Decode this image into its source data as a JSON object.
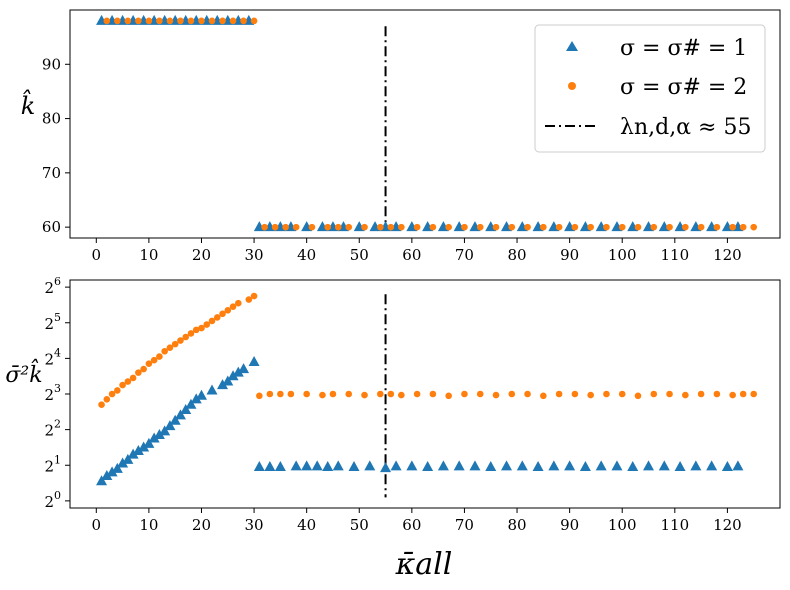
{
  "chart_data": [
    {
      "type": "scatter",
      "panel": "top",
      "xlabel": "",
      "ylabel": "k̂",
      "xlim": [
        -5,
        130
      ],
      "ylim": [
        58,
        100
      ],
      "x_ticks": [
        0,
        10,
        20,
        30,
        40,
        50,
        60,
        70,
        80,
        90,
        100,
        110,
        120
      ],
      "y_ticks": [
        60,
        70,
        80,
        90
      ],
      "y_tick_labels": [
        "60",
        "70",
        "80",
        "90"
      ],
      "vline": {
        "x": 55,
        "y_range": [
          60,
          97
        ],
        "label": "λn,d,α ≈ 55"
      },
      "legend_position": "top-right",
      "series": [
        {
          "name": "σ = σ# = 1",
          "marker": "triangle",
          "color": "#1f77b4",
          "points": [
            [
              1,
              98
            ],
            [
              3,
              98
            ],
            [
              5,
              98
            ],
            [
              7,
              98
            ],
            [
              9,
              98
            ],
            [
              11,
              98
            ],
            [
              13,
              98
            ],
            [
              15,
              98
            ],
            [
              17,
              98
            ],
            [
              19,
              98
            ],
            [
              21,
              98
            ],
            [
              23,
              98
            ],
            [
              25,
              98
            ],
            [
              27,
              98
            ],
            [
              29,
              98
            ],
            [
              31,
              60
            ],
            [
              33,
              60
            ],
            [
              35,
              60
            ],
            [
              37,
              60
            ],
            [
              40,
              60
            ],
            [
              43,
              60
            ],
            [
              45,
              60
            ],
            [
              47,
              60
            ],
            [
              50,
              60
            ],
            [
              53,
              60
            ],
            [
              55,
              60
            ],
            [
              57,
              60
            ],
            [
              60,
              60
            ],
            [
              63,
              60
            ],
            [
              66,
              60
            ],
            [
              69,
              60
            ],
            [
              72,
              60
            ],
            [
              75,
              60
            ],
            [
              78,
              60
            ],
            [
              81,
              60
            ],
            [
              84,
              60
            ],
            [
              87,
              60
            ],
            [
              90,
              60
            ],
            [
              93,
              60
            ],
            [
              96,
              60
            ],
            [
              99,
              60
            ],
            [
              102,
              60
            ],
            [
              105,
              60
            ],
            [
              108,
              60
            ],
            [
              111,
              60
            ],
            [
              114,
              60
            ],
            [
              117,
              60
            ],
            [
              120,
              60
            ],
            [
              122,
              60
            ]
          ]
        },
        {
          "name": "σ = σ# = 2",
          "marker": "circle",
          "color": "#ff7f0e",
          "points": [
            [
              2,
              98
            ],
            [
              4,
              98
            ],
            [
              6,
              98
            ],
            [
              8,
              98
            ],
            [
              10,
              98
            ],
            [
              12,
              98
            ],
            [
              14,
              98
            ],
            [
              16,
              98
            ],
            [
              18,
              98
            ],
            [
              20,
              98
            ],
            [
              22,
              98
            ],
            [
              24,
              98
            ],
            [
              26,
              98
            ],
            [
              28,
              98
            ],
            [
              30,
              98
            ],
            [
              32,
              60
            ],
            [
              34,
              60
            ],
            [
              36,
              60
            ],
            [
              38,
              60
            ],
            [
              41,
              60
            ],
            [
              44,
              60
            ],
            [
              46,
              60
            ],
            [
              48,
              60
            ],
            [
              51,
              60
            ],
            [
              54,
              60
            ],
            [
              56,
              60
            ],
            [
              58,
              60
            ],
            [
              61,
              60
            ],
            [
              64,
              60
            ],
            [
              67,
              60
            ],
            [
              70,
              60
            ],
            [
              73,
              60
            ],
            [
              76,
              60
            ],
            [
              79,
              60
            ],
            [
              82,
              60
            ],
            [
              85,
              60
            ],
            [
              88,
              60
            ],
            [
              91,
              60
            ],
            [
              94,
              60
            ],
            [
              97,
              60
            ],
            [
              100,
              60
            ],
            [
              103,
              60
            ],
            [
              106,
              60
            ],
            [
              109,
              60
            ],
            [
              112,
              60
            ],
            [
              115,
              60
            ],
            [
              118,
              60
            ],
            [
              121,
              60
            ],
            [
              123,
              60
            ],
            [
              125,
              60
            ]
          ]
        }
      ]
    },
    {
      "type": "scatter",
      "panel": "bottom",
      "xlabel": "κ̄all",
      "ylabel": "σ̄²k̂",
      "y_scale": "log2",
      "xlim": [
        -5,
        130
      ],
      "ylim_log2": [
        -0.2,
        6.2
      ],
      "x_ticks": [
        0,
        10,
        20,
        30,
        40,
        50,
        60,
        70,
        80,
        90,
        100,
        110,
        120
      ],
      "x_tick_labels": [
        "0",
        "10",
        "20",
        "30",
        "40",
        "50",
        "60",
        "70",
        "80",
        "90",
        "100",
        "110",
        "120"
      ],
      "y_ticks_log2": [
        0,
        1,
        2,
        3,
        4,
        5,
        6
      ],
      "vline": {
        "x": 55,
        "y_range_log2": [
          0.1,
          5.8
        ]
      },
      "series": [
        {
          "name": "σ = σ# = 1",
          "marker": "triangle",
          "color": "#1f77b4",
          "points": [
            [
              1,
              0.55
            ],
            [
              2,
              0.7
            ],
            [
              3,
              0.8
            ],
            [
              4,
              0.9
            ],
            [
              5,
              1.05
            ],
            [
              6,
              1.15
            ],
            [
              7,
              1.3
            ],
            [
              8,
              1.4
            ],
            [
              9,
              1.5
            ],
            [
              10,
              1.6
            ],
            [
              11,
              1.75
            ],
            [
              12,
              1.85
            ],
            [
              13,
              1.95
            ],
            [
              14,
              2.1
            ],
            [
              15,
              2.25
            ],
            [
              16,
              2.4
            ],
            [
              17,
              2.55
            ],
            [
              18,
              2.7
            ],
            [
              19,
              2.85
            ],
            [
              20,
              2.95
            ],
            [
              22,
              3.1
            ],
            [
              24,
              3.25
            ],
            [
              25,
              3.35
            ],
            [
              26,
              3.5
            ],
            [
              27,
              3.6
            ],
            [
              28,
              3.7
            ],
            [
              30,
              3.9
            ],
            [
              31,
              0.95
            ],
            [
              33,
              0.95
            ],
            [
              35,
              0.95
            ],
            [
              38,
              0.97
            ],
            [
              40,
              0.97
            ],
            [
              42,
              0.97
            ],
            [
              44,
              0.95
            ],
            [
              46,
              0.97
            ],
            [
              49,
              0.95
            ],
            [
              52,
              0.97
            ],
            [
              55,
              0.92
            ],
            [
              57,
              0.97
            ],
            [
              60,
              0.97
            ],
            [
              63,
              0.95
            ],
            [
              66,
              0.97
            ],
            [
              69,
              0.97
            ],
            [
              72,
              0.97
            ],
            [
              75,
              0.95
            ],
            [
              78,
              0.97
            ],
            [
              81,
              0.97
            ],
            [
              84,
              0.95
            ],
            [
              87,
              0.97
            ],
            [
              90,
              0.97
            ],
            [
              93,
              0.95
            ],
            [
              96,
              0.97
            ],
            [
              99,
              0.97
            ],
            [
              102,
              0.95
            ],
            [
              105,
              0.97
            ],
            [
              108,
              0.97
            ],
            [
              111,
              0.95
            ],
            [
              114,
              0.97
            ],
            [
              117,
              0.97
            ],
            [
              120,
              0.95
            ],
            [
              122,
              0.97
            ]
          ]
        },
        {
          "name": "σ = σ# = 2",
          "marker": "circle",
          "color": "#ff7f0e",
          "points": [
            [
              1,
              2.7
            ],
            [
              2,
              2.85
            ],
            [
              3,
              3.0
            ],
            [
              4,
              3.1
            ],
            [
              5,
              3.25
            ],
            [
              6,
              3.35
            ],
            [
              7,
              3.45
            ],
            [
              8,
              3.6
            ],
            [
              9,
              3.7
            ],
            [
              10,
              3.85
            ],
            [
              11,
              3.95
            ],
            [
              12,
              4.05
            ],
            [
              13,
              4.2
            ],
            [
              14,
              4.3
            ],
            [
              15,
              4.4
            ],
            [
              16,
              4.5
            ],
            [
              17,
              4.6
            ],
            [
              18,
              4.7
            ],
            [
              19,
              4.8
            ],
            [
              20,
              4.85
            ],
            [
              21,
              4.95
            ],
            [
              22,
              5.05
            ],
            [
              23,
              5.15
            ],
            [
              24,
              5.25
            ],
            [
              25,
              5.35
            ],
            [
              26,
              5.45
            ],
            [
              27,
              5.55
            ],
            [
              29,
              5.65
            ],
            [
              30,
              5.75
            ],
            [
              31,
              2.95
            ],
            [
              33,
              3.0
            ],
            [
              35,
              3.0
            ],
            [
              37,
              3.0
            ],
            [
              40,
              3.0
            ],
            [
              43,
              2.97
            ],
            [
              45,
              3.0
            ],
            [
              48,
              3.0
            ],
            [
              51,
              2.97
            ],
            [
              54,
              3.0
            ],
            [
              56,
              3.0
            ],
            [
              58,
              2.97
            ],
            [
              61,
              3.0
            ],
            [
              64,
              3.0
            ],
            [
              67,
              2.95
            ],
            [
              70,
              3.0
            ],
            [
              73,
              3.0
            ],
            [
              76,
              2.97
            ],
            [
              79,
              3.0
            ],
            [
              82,
              3.0
            ],
            [
              85,
              2.95
            ],
            [
              88,
              3.0
            ],
            [
              91,
              3.0
            ],
            [
              94,
              2.97
            ],
            [
              97,
              3.0
            ],
            [
              100,
              3.0
            ],
            [
              103,
              2.95
            ],
            [
              106,
              3.0
            ],
            [
              109,
              3.0
            ],
            [
              112,
              2.97
            ],
            [
              115,
              3.0
            ],
            [
              118,
              3.0
            ],
            [
              121,
              2.97
            ],
            [
              123,
              3.0
            ],
            [
              125,
              3.0
            ]
          ]
        }
      ]
    }
  ],
  "legend": {
    "entries": [
      {
        "label": "σ = σ# = 1",
        "marker": "triangle",
        "color": "#1f77b4"
      },
      {
        "label": "σ = σ# = 2",
        "marker": "circle",
        "color": "#ff7f0e"
      },
      {
        "label": "λn,d,α ≈ 55",
        "marker": "dashdot-line",
        "color": "#000000"
      }
    ]
  }
}
